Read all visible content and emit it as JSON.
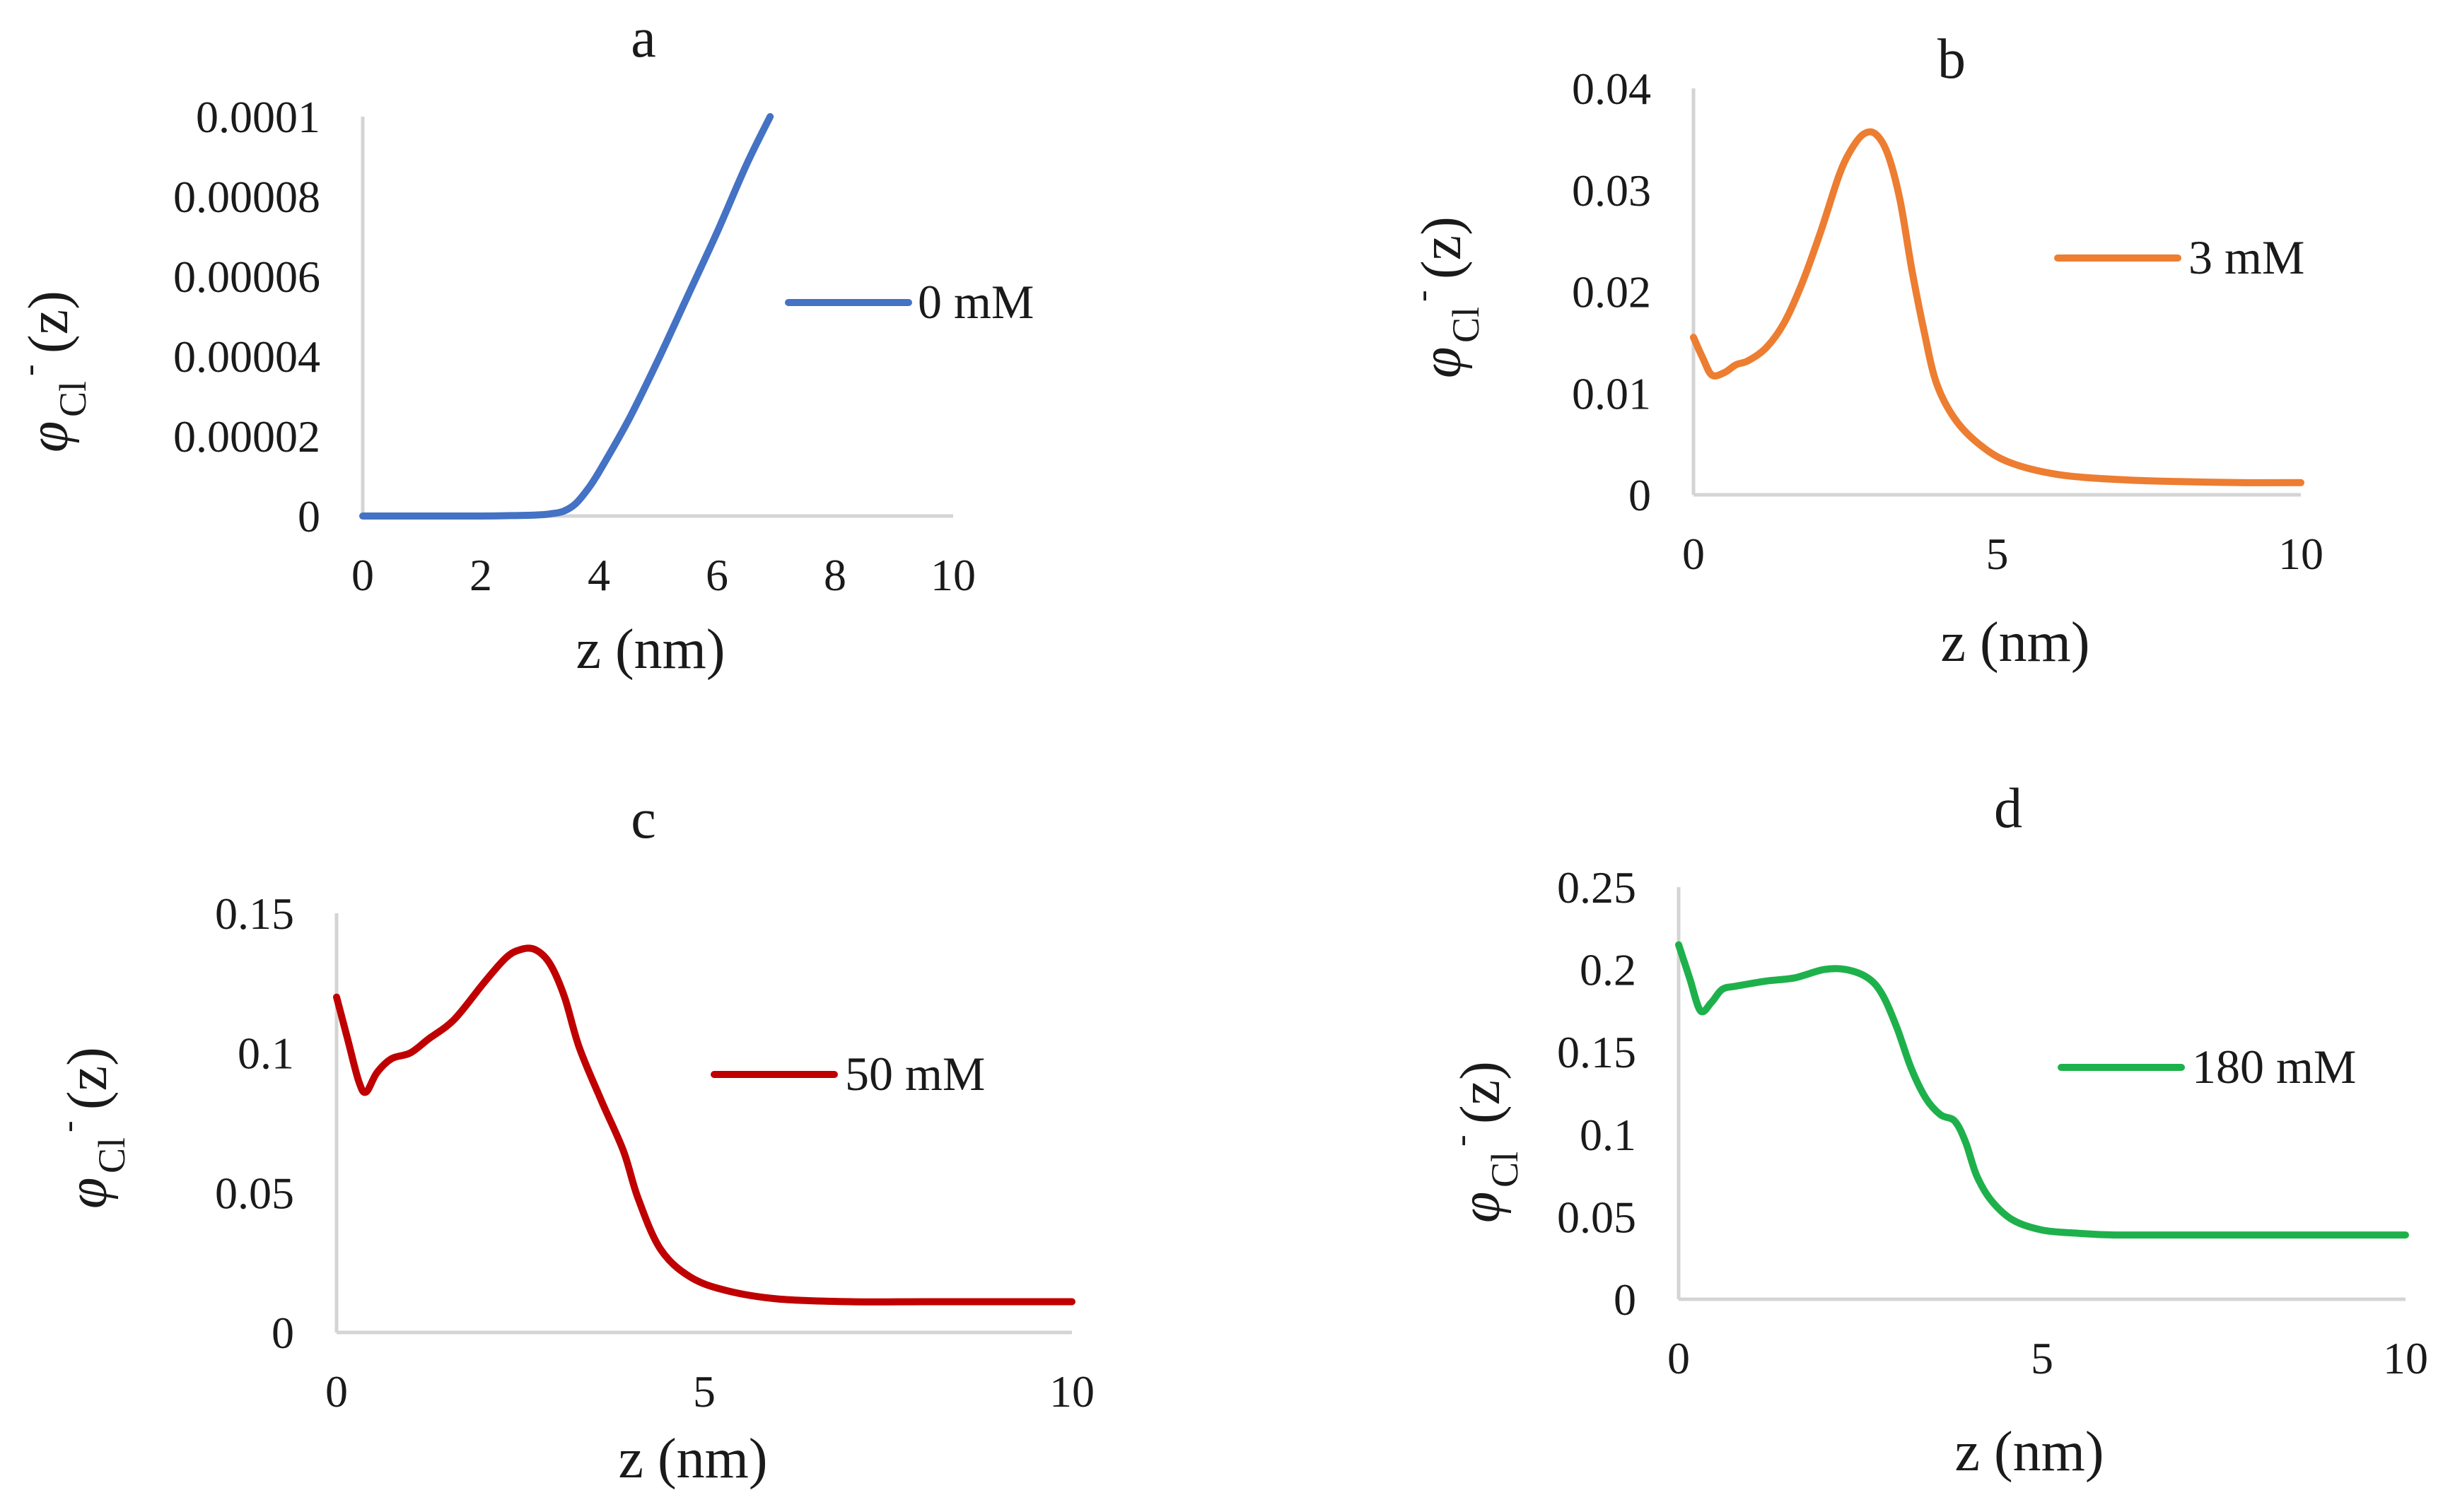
{
  "chart_data": [
    {
      "type": "line",
      "title": "a",
      "xlabel": "z (nm)",
      "ylabel": {
        "symbol": "φ",
        "subscript": "Cl",
        "superscript": "-",
        "arg": "(z)"
      },
      "xlim": [
        0,
        10
      ],
      "ylim": [
        0,
        0.0001
      ],
      "xticks": [
        "0",
        "2",
        "4",
        "6",
        "8",
        "10"
      ],
      "yticks": [
        "0",
        "0.00002",
        "0.00004",
        "0.00006",
        "0.00008",
        "0.0001"
      ],
      "series": [
        {
          "name": "0 mM",
          "color": "#4472c4",
          "x": [
            0,
            1,
            2,
            2.5,
            3,
            3.2,
            3.4,
            3.6,
            3.8,
            4,
            4.5,
            5,
            5.5,
            6,
            6.5,
            6.9
          ],
          "y": [
            0,
            0,
            0,
            1e-07,
            3e-07,
            6e-07,
            1.2e-06,
            3e-06,
            6.5e-06,
            1.1e-05,
            2.4e-05,
            3.9e-05,
            5.5e-05,
            7.1e-05,
            8.8e-05,
            0.0001
          ]
        }
      ]
    },
    {
      "type": "line",
      "title": "b",
      "xlabel": "z (nm)",
      "ylabel": {
        "symbol": "φ",
        "subscript": "Cl",
        "superscript": "-",
        "arg": "(z)"
      },
      "xlim": [
        0,
        10
      ],
      "ylim": [
        0,
        0.04
      ],
      "xticks": [
        "0",
        "5",
        "10"
      ],
      "yticks": [
        "0",
        "0.01",
        "0.02",
        "0.03",
        "0.04"
      ],
      "series": [
        {
          "name": "3 mM",
          "color": "#ed7d31",
          "x": [
            0,
            0.15,
            0.3,
            0.5,
            0.7,
            0.9,
            1.2,
            1.5,
            1.8,
            2.1,
            2.4,
            2.6,
            2.8,
            3.0,
            3.2,
            3.4,
            3.6,
            3.8,
            4.0,
            4.3,
            4.7,
            5.2,
            6,
            7,
            8,
            9,
            10
          ],
          "y": [
            0.0155,
            0.0135,
            0.0118,
            0.012,
            0.0128,
            0.0132,
            0.0145,
            0.017,
            0.021,
            0.026,
            0.0315,
            0.034,
            0.0355,
            0.0355,
            0.0335,
            0.029,
            0.022,
            0.016,
            0.011,
            0.0075,
            0.005,
            0.0032,
            0.002,
            0.0015,
            0.0013,
            0.0012,
            0.0012
          ]
        }
      ]
    },
    {
      "type": "line",
      "title": "c",
      "xlabel": "z (nm)",
      "ylabel": {
        "symbol": "φ",
        "subscript": "Cl",
        "superscript": "-",
        "arg": "(z)"
      },
      "xlim": [
        0,
        10
      ],
      "ylim": [
        0,
        0.15
      ],
      "xticks": [
        "0",
        "5",
        "10"
      ],
      "yticks": [
        "0",
        "0.05",
        "0.1",
        "0.15"
      ],
      "series": [
        {
          "name": "50 mM",
          "color": "#c00000",
          "x": [
            0,
            0.15,
            0.3,
            0.4,
            0.55,
            0.75,
            1.0,
            1.25,
            1.6,
            2.0,
            2.3,
            2.5,
            2.7,
            2.9,
            3.1,
            3.3,
            3.6,
            3.9,
            4.1,
            4.4,
            4.8,
            5.3,
            6,
            7,
            8,
            9,
            10
          ],
          "y": [
            0.12,
            0.105,
            0.09,
            0.086,
            0.093,
            0.098,
            0.1,
            0.105,
            0.112,
            0.125,
            0.134,
            0.137,
            0.137,
            0.132,
            0.12,
            0.102,
            0.083,
            0.065,
            0.048,
            0.03,
            0.02,
            0.015,
            0.012,
            0.011,
            0.011,
            0.011,
            0.011
          ]
        }
      ]
    },
    {
      "type": "line",
      "title": "d",
      "xlabel": "z (nm)",
      "ylabel": {
        "symbol": "φ",
        "subscript": "Cl",
        "superscript": "-",
        "arg": "(z)"
      },
      "xlim": [
        0,
        10
      ],
      "ylim": [
        0,
        0.25
      ],
      "xticks": [
        "0",
        "5",
        "10"
      ],
      "yticks": [
        "0",
        "0.05",
        "0.1",
        "0.15",
        "0.2",
        "0.25"
      ],
      "series": [
        {
          "name": "180 mM",
          "color": "#1eb14b",
          "x": [
            0,
            0.15,
            0.3,
            0.45,
            0.6,
            0.8,
            1.2,
            1.6,
            2.0,
            2.3,
            2.6,
            2.8,
            3.0,
            3.2,
            3.4,
            3.6,
            3.8,
            3.95,
            4.1,
            4.3,
            4.6,
            5.0,
            5.5,
            6,
            7,
            8,
            9,
            10
          ],
          "y": [
            0.215,
            0.195,
            0.175,
            0.18,
            0.188,
            0.19,
            0.193,
            0.195,
            0.2,
            0.2,
            0.195,
            0.185,
            0.165,
            0.14,
            0.122,
            0.112,
            0.108,
            0.095,
            0.075,
            0.06,
            0.048,
            0.042,
            0.04,
            0.039,
            0.039,
            0.039,
            0.039,
            0.039
          ]
        }
      ]
    }
  ]
}
